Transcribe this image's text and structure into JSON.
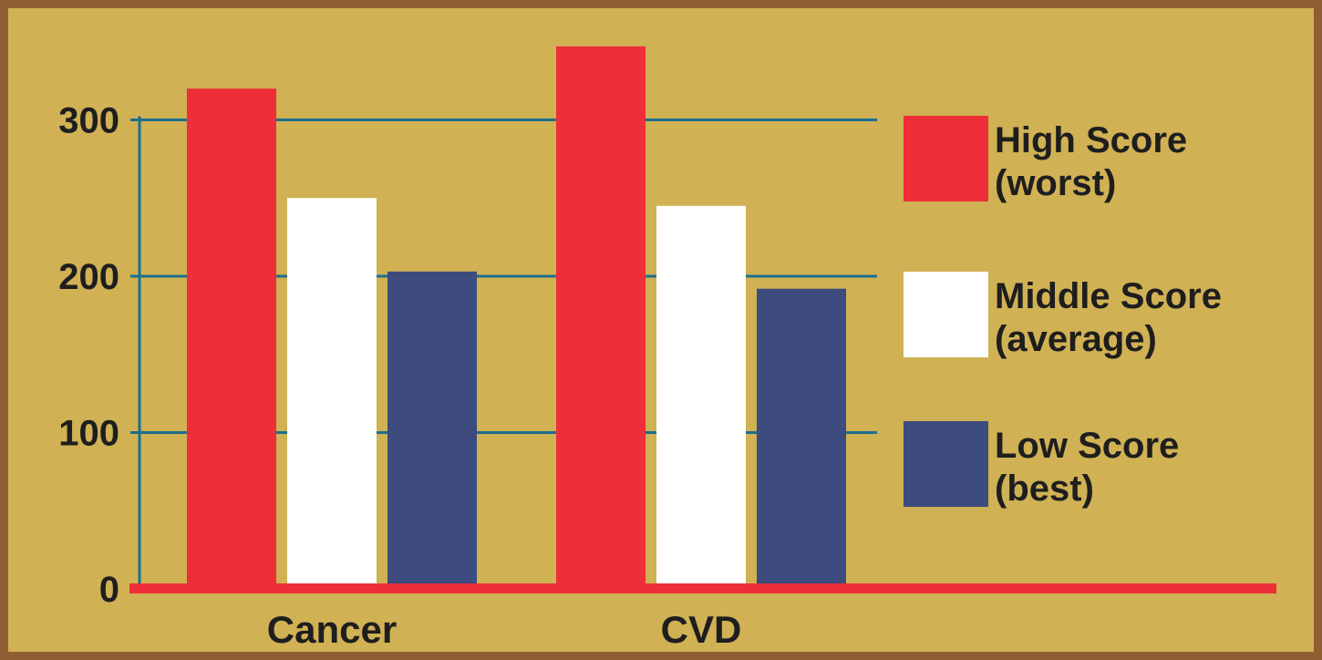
{
  "chart_data": {
    "type": "bar",
    "title": "",
    "xlabel": "",
    "ylabel": "",
    "categories": [
      "Cancer",
      "CVD"
    ],
    "series": [
      {
        "name": "High Score (worst)",
        "name_lines": [
          "High Score",
          "(worst)"
        ],
        "values": [
          320,
          347
        ],
        "color": "#ee2e38"
      },
      {
        "name": "Middle Score (average)",
        "name_lines": [
          "Middle Score",
          "(average)"
        ],
        "values": [
          250,
          245
        ],
        "color": "#ffffff"
      },
      {
        "name": "Low Score (best)",
        "name_lines": [
          "Low Score",
          "(best)"
        ],
        "values": [
          203,
          192
        ],
        "color": "#3d4b7e"
      }
    ],
    "yticks": [
      0,
      100,
      200,
      300
    ],
    "ylim": [
      0,
      360
    ],
    "grid": true,
    "legend": "right",
    "colors": {
      "background": "#d0b154",
      "border": "#8f5e32",
      "gridline": "#1b6f8f",
      "baseline": "#ee2e38"
    }
  }
}
